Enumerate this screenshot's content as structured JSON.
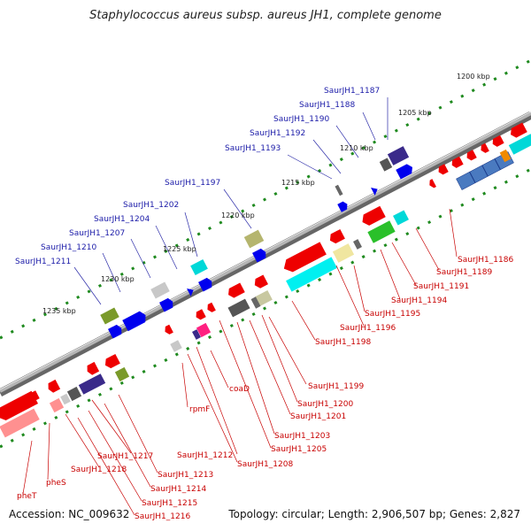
{
  "header": {
    "title": "Staphylococcus aureus subsp. aureus JH1, complete genome"
  },
  "footer": {
    "accession": "Accession: NC_009632",
    "summary": "Topology: circular; Length: 2,906,507 bp; Genes: 2,827"
  },
  "colors": {
    "forward": "#0000ee",
    "reverse": "#ee0000",
    "label_forward": "#1a1aa8",
    "label_reverse": "#c80000",
    "backbone": "#8a8a8a",
    "dots": "#1f8a1f"
  },
  "ticks": [
    "1200 kbp",
    "1205 kbp",
    "1210 kbp",
    "1215 kbp",
    "1220 kbp",
    "1225 kbp",
    "1230 kbp",
    "1235 kbp"
  ],
  "forward_labels": [
    "SaurJH1_1187",
    "SaurJH1_1188",
    "SaurJH1_1190",
    "SaurJH1_1192",
    "SaurJH1_1193",
    "SaurJH1_1197",
    "SaurJH1_1202",
    "SaurJH1_1204",
    "SaurJH1_1207",
    "SaurJH1_1210",
    "SaurJH1_1211"
  ],
  "reverse_labels": [
    "SaurJH1_1186",
    "SaurJH1_1189",
    "SaurJH1_1191",
    "SaurJH1_1194",
    "SaurJH1_1195",
    "SaurJH1_1196",
    "SaurJH1_1198",
    "SaurJH1_1199",
    "SaurJH1_1200",
    "SaurJH1_1201",
    "SaurJH1_1203",
    "SaurJH1_1205",
    "coaD",
    "rpmF",
    "SaurJH1_1212",
    "SaurJH1_1208",
    "SaurJH1_1213",
    "SaurJH1_1214",
    "SaurJH1_1215",
    "SaurJH1_1216",
    "SaurJH1_1217",
    "SaurJH1_1218",
    "pheS",
    "pheT"
  ]
}
